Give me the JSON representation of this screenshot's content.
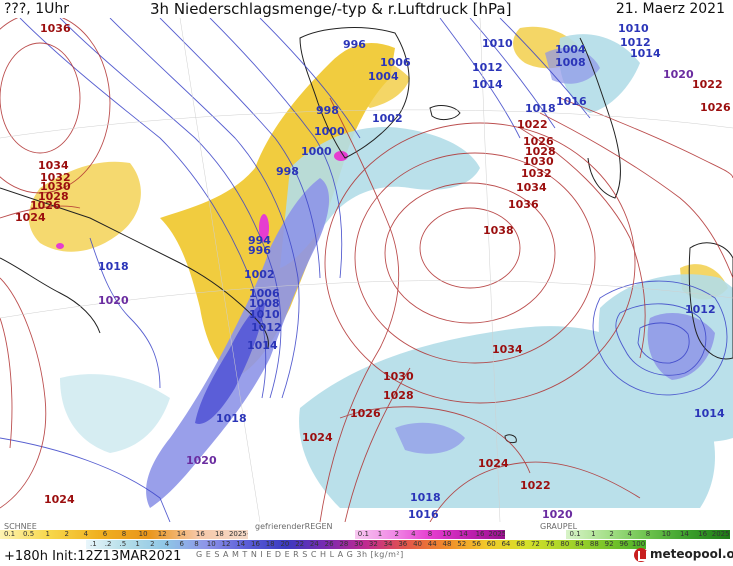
{
  "header": {
    "left": "???, 1Uhr",
    "title": "3h Niederschlagsmenge/-typ & r.Luftdruck [hPa]",
    "date": "21. Maerz 2021"
  },
  "isobar_labels": [
    {
      "text": "1036",
      "cls": "hi"
    },
    {
      "text": "996",
      "cls": "lo"
    },
    {
      "text": "1010",
      "cls": "lo"
    },
    {
      "text": "1004",
      "cls": "lo"
    },
    {
      "text": "1010",
      "cls": "lo"
    },
    {
      "text": "1012",
      "cls": "lo"
    },
    {
      "text": "1014",
      "cls": "lo"
    },
    {
      "text": "1008",
      "cls": "lo"
    },
    {
      "text": "1006",
      "cls": "lo"
    },
    {
      "text": "1012",
      "cls": "lo"
    },
    {
      "text": "1004",
      "cls": "lo"
    },
    {
      "text": "1014",
      "cls": "lo"
    },
    {
      "text": "1016",
      "cls": "lo"
    },
    {
      "text": "1018",
      "cls": "lo"
    },
    {
      "text": "1020",
      "cls": "mid"
    },
    {
      "text": "1022",
      "cls": "hi"
    },
    {
      "text": "1026",
      "cls": "hi"
    },
    {
      "text": "998",
      "cls": "lo"
    },
    {
      "text": "1000",
      "cls": "lo"
    },
    {
      "text": "1002",
      "cls": "lo"
    },
    {
      "text": "1000",
      "cls": "lo"
    },
    {
      "text": "998",
      "cls": "lo"
    },
    {
      "text": "1022",
      "cls": "hi"
    },
    {
      "text": "1026",
      "cls": "hi"
    },
    {
      "text": "1028",
      "cls": "hi"
    },
    {
      "text": "1030",
      "cls": "hi"
    },
    {
      "text": "1032",
      "cls": "hi"
    },
    {
      "text": "1034",
      "cls": "hi"
    },
    {
      "text": "1036",
      "cls": "hi"
    },
    {
      "text": "1038",
      "cls": "hi"
    },
    {
      "text": "1034",
      "cls": "hi"
    },
    {
      "text": "1032",
      "cls": "hi"
    },
    {
      "text": "1030",
      "cls": "hi"
    },
    {
      "text": "1028",
      "cls": "hi"
    },
    {
      "text": "1026",
      "cls": "hi"
    },
    {
      "text": "1024",
      "cls": "hi"
    },
    {
      "text": "1018",
      "cls": "lo"
    },
    {
      "text": "1020",
      "cls": "mid"
    },
    {
      "text": "994",
      "cls": "lo"
    },
    {
      "text": "996",
      "cls": "lo"
    },
    {
      "text": "1002",
      "cls": "lo"
    },
    {
      "text": "1006",
      "cls": "lo"
    },
    {
      "text": "1008",
      "cls": "lo"
    },
    {
      "text": "1010",
      "cls": "lo"
    },
    {
      "text": "1012",
      "cls": "lo"
    },
    {
      "text": "1014",
      "cls": "lo"
    },
    {
      "text": "1034",
      "cls": "hi"
    },
    {
      "text": "1012",
      "cls": "lo"
    },
    {
      "text": "1030",
      "cls": "hi"
    },
    {
      "text": "1028",
      "cls": "hi"
    },
    {
      "text": "1026",
      "cls": "hi"
    },
    {
      "text": "1024",
      "cls": "hi"
    },
    {
      "text": "1024",
      "cls": "hi"
    },
    {
      "text": "1022",
      "cls": "hi"
    },
    {
      "text": "1014",
      "cls": "lo"
    },
    {
      "text": "1018",
      "cls": "lo"
    },
    {
      "text": "1020",
      "cls": "mid"
    },
    {
      "text": "1018",
      "cls": "lo"
    },
    {
      "text": "1016",
      "cls": "lo"
    },
    {
      "text": "1020",
      "cls": "mid"
    },
    {
      "text": "1024",
      "cls": "hi"
    }
  ],
  "legend": {
    "snow_label": "SCHNEE",
    "freezing_rain_label": "gefrierenderREGEN",
    "graupel_label": "GRAUPEL",
    "total_label": "G E S A M T N I E D E R S C H L A G   3h   [kg/m²]",
    "snow_scale": [
      "0.1",
      "0.5",
      "1",
      "2",
      "4",
      "6",
      "8",
      "10",
      "12",
      "14",
      "16",
      "18",
      "2025+"
    ],
    "frz_scale": [
      "0.1",
      "1",
      "2",
      "4",
      "8",
      "10",
      "14",
      "16",
      "2025+"
    ],
    "graupel_scale": [
      "0.1",
      "1",
      "2",
      "4",
      "8",
      "10",
      "14",
      "16",
      "2025+"
    ],
    "total_scale": [
      ".1",
      ".2",
      ".5",
      "1",
      "2",
      "4",
      "6",
      "8",
      "10",
      "12",
      "14",
      "16",
      "18",
      "20",
      "22",
      "24",
      "26",
      "28",
      "30",
      "32",
      "34",
      "36",
      "40",
      "44",
      "48",
      "52",
      "56",
      "60",
      "64",
      "68",
      "72",
      "76",
      "80",
      "84",
      "88",
      "92",
      "96",
      "100"
    ]
  },
  "footer": {
    "run": "+180h Init:12Z13MAR2021",
    "logo": "meteopool.org"
  },
  "colors": {
    "high_isobar": "#b03030",
    "low_isobar": "#3a43c8",
    "snow": "#f2c81f",
    "rain_light": "#aedbe6",
    "rain_mid": "#8f96e8",
    "rain_heavy": "#5a5ad8",
    "freezing": "#e63dd0"
  }
}
